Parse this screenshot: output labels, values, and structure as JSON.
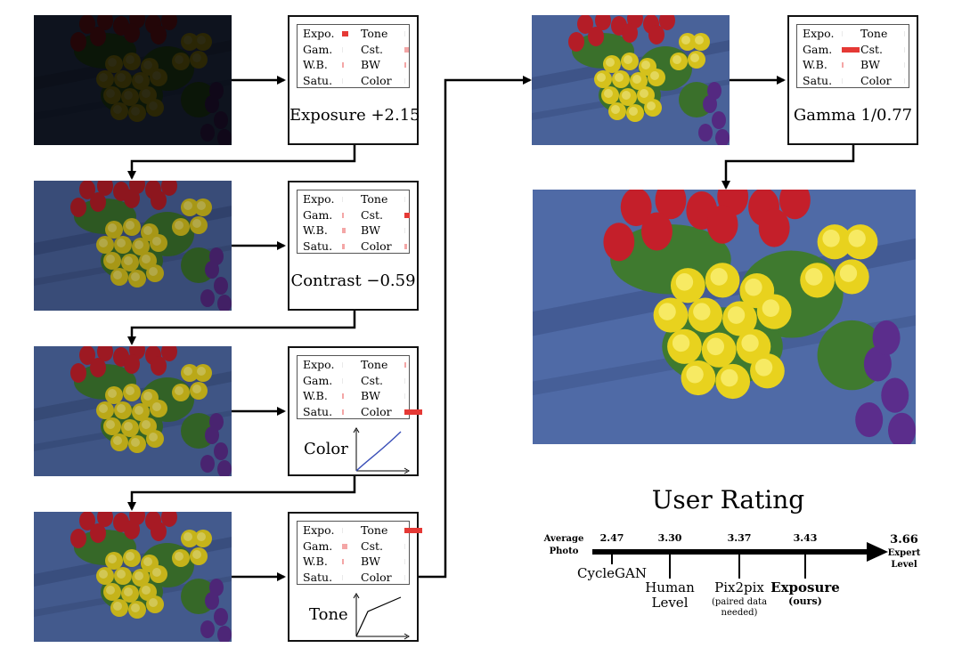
{
  "colors": {
    "bar_strong": "#e53935",
    "bar_weak": "#f4a6a6",
    "curve": "#3a4fb8"
  },
  "operations": {
    "exposure": {
      "panel": [
        {
          "name": "Expo.",
          "bar": 0.35,
          "strength": "strong"
        },
        {
          "name": "Tone",
          "bar": 0,
          "strength": "weak"
        },
        {
          "name": "Gam.",
          "bar": 0,
          "strength": "weak"
        },
        {
          "name": "Cst.",
          "bar": 0.25,
          "strength": "weak"
        },
        {
          "name": "W.B.",
          "bar": 0.12,
          "strength": "weak"
        },
        {
          "name": "BW",
          "bar": 0.1,
          "strength": "weak"
        },
        {
          "name": "Satu.",
          "bar": 0,
          "strength": "weak"
        },
        {
          "name": "Color",
          "bar": 0,
          "strength": "weak"
        }
      ],
      "title": "Exposure +2.15"
    },
    "contrast": {
      "panel": [
        {
          "name": "Expo.",
          "bar": 0,
          "strength": "weak"
        },
        {
          "name": "Tone",
          "bar": 0,
          "strength": "weak"
        },
        {
          "name": "Gam.",
          "bar": 0.05,
          "strength": "weak"
        },
        {
          "name": "Cst.",
          "bar": 0.3,
          "strength": "strong"
        },
        {
          "name": "W.B.",
          "bar": 0.18,
          "strength": "weak"
        },
        {
          "name": "BW",
          "bar": 0,
          "strength": "weak"
        },
        {
          "name": "Satu.",
          "bar": 0.15,
          "strength": "weak"
        },
        {
          "name": "Color",
          "bar": 0.15,
          "strength": "weak"
        }
      ],
      "title": "Contrast −0.59"
    },
    "color": {
      "panel": [
        {
          "name": "Expo.",
          "bar": 0,
          "strength": "weak"
        },
        {
          "name": "Tone",
          "bar": 0.1,
          "strength": "weak"
        },
        {
          "name": "Gam.",
          "bar": 0,
          "strength": "weak"
        },
        {
          "name": "Cst.",
          "bar": 0,
          "strength": "weak"
        },
        {
          "name": "W.B.",
          "bar": 0.1,
          "strength": "weak"
        },
        {
          "name": "BW",
          "bar": 0,
          "strength": "weak"
        },
        {
          "name": "Satu.",
          "bar": 0.05,
          "strength": "weak"
        },
        {
          "name": "Color",
          "bar": 1.0,
          "strength": "strong"
        }
      ],
      "title": "Color"
    },
    "tone": {
      "panel": [
        {
          "name": "Expo.",
          "bar": 0,
          "strength": "weak"
        },
        {
          "name": "Tone",
          "bar": 1.0,
          "strength": "strong"
        },
        {
          "name": "Gam.",
          "bar": 0.3,
          "strength": "weak"
        },
        {
          "name": "Cst.",
          "bar": 0,
          "strength": "weak"
        },
        {
          "name": "W.B.",
          "bar": 0.1,
          "strength": "weak"
        },
        {
          "name": "BW",
          "bar": 0,
          "strength": "weak"
        },
        {
          "name": "Satu.",
          "bar": 0,
          "strength": "weak"
        },
        {
          "name": "Color",
          "bar": 0,
          "strength": "weak"
        }
      ],
      "title": "Tone"
    },
    "gamma": {
      "panel": [
        {
          "name": "Expo.",
          "bar": 0,
          "strength": "weak"
        },
        {
          "name": "Tone",
          "bar": 0,
          "strength": "weak"
        },
        {
          "name": "Gam.",
          "bar": 1.0,
          "strength": "strong"
        },
        {
          "name": "Cst.",
          "bar": 0,
          "strength": "weak"
        },
        {
          "name": "W.B.",
          "bar": 0.1,
          "strength": "weak"
        },
        {
          "name": "BW",
          "bar": 0,
          "strength": "weak"
        },
        {
          "name": "Satu.",
          "bar": 0,
          "strength": "weak"
        },
        {
          "name": "Color",
          "bar": 0,
          "strength": "weak"
        }
      ],
      "title": "Gamma 1/0.77"
    }
  },
  "rating": {
    "title": "User Rating",
    "start_label": "Average\nPhoto",
    "end_value": "3.66",
    "end_label": "Expert\nLevel",
    "ticks": [
      {
        "value": "2.47",
        "method": "CycleGAN",
        "note": "",
        "bold": false
      },
      {
        "value": "3.30",
        "method": "Human\nLevel",
        "note": "",
        "bold": false
      },
      {
        "value": "3.37",
        "method": "Pix2pix",
        "note": "(paired data\nneeded)",
        "bold": false
      },
      {
        "value": "3.43",
        "method": "Exposure",
        "note": "(ours)",
        "bold": true
      }
    ]
  }
}
